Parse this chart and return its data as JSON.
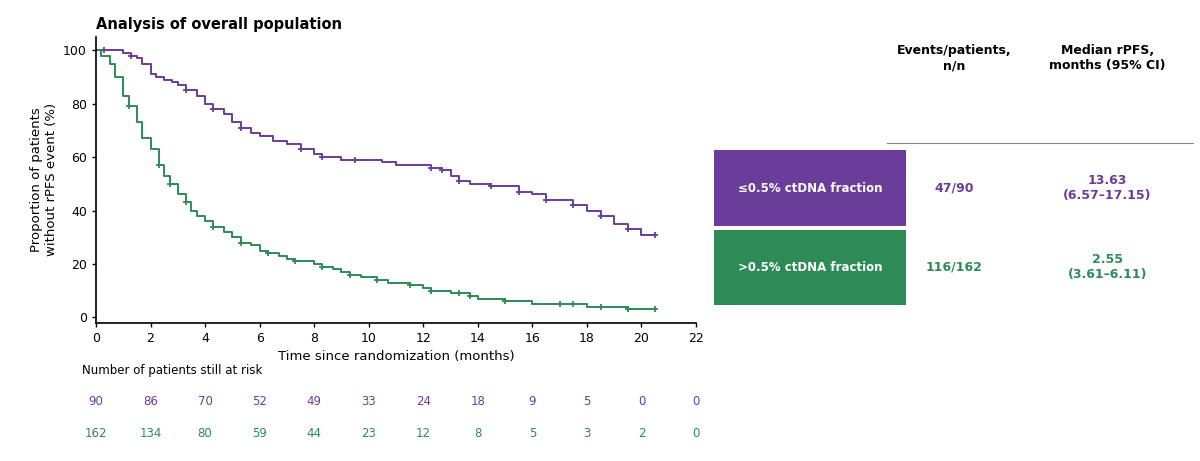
{
  "title": "Analysis of overall population",
  "xlabel": "Time since randomization (months)",
  "ylabel": "Proportion of patients\nwithout rPFS event (%)",
  "purple_color": "#6A3D9A",
  "green_color": "#2E8B57",
  "xlim": [
    0,
    22
  ],
  "ylim": [
    -2,
    105
  ],
  "xticks": [
    0,
    2,
    4,
    6,
    8,
    10,
    12,
    14,
    16,
    18,
    20,
    22
  ],
  "yticks": [
    0,
    20,
    40,
    60,
    80,
    100
  ],
  "legend_label_purple": "≤0.5% ctDNA fraction",
  "legend_label_green": ">0.5% ctDNA fraction",
  "events_patients_purple": "47/90",
  "events_patients_green": "116/162",
  "median_rpfs_purple": "13.63\n(6.57–17.15)",
  "median_rpfs_green": "2.55\n(3.61–6.11)",
  "col_header1": "Events/patients,\nn/n",
  "col_header2": "Median rPFS,\nmonths (95% CI)",
  "at_risk_label": "Number of patients still at risk",
  "at_risk_purple": [
    90,
    86,
    70,
    52,
    49,
    33,
    24,
    18,
    9,
    5,
    0,
    0
  ],
  "at_risk_green": [
    162,
    134,
    80,
    59,
    44,
    23,
    12,
    8,
    5,
    3,
    2,
    0
  ],
  "at_risk_times": [
    0,
    2,
    4,
    6,
    8,
    10,
    12,
    14,
    16,
    18,
    20,
    22
  ],
  "purple_km_times": [
    0,
    0.3,
    0.8,
    1.0,
    1.3,
    1.5,
    1.7,
    2.0,
    2.2,
    2.5,
    2.8,
    3.0,
    3.3,
    3.7,
    4.0,
    4.3,
    4.7,
    5.0,
    5.3,
    5.7,
    6.0,
    6.5,
    7.0,
    7.5,
    8.0,
    8.3,
    8.7,
    9.0,
    9.5,
    10.0,
    10.5,
    11.0,
    11.5,
    12.0,
    12.3,
    12.7,
    13.0,
    13.3,
    13.7,
    14.0,
    14.5,
    15.0,
    15.5,
    16.0,
    16.5,
    17.0,
    17.5,
    18.0,
    18.5,
    19.0,
    19.5,
    20.0,
    20.5
  ],
  "purple_km_surv": [
    100,
    100,
    100,
    99,
    98,
    97,
    95,
    91,
    90,
    89,
    88,
    87,
    85,
    83,
    80,
    78,
    76,
    73,
    71,
    69,
    68,
    66,
    65,
    63,
    61,
    60,
    60,
    59,
    59,
    59,
    58,
    57,
    57,
    57,
    56,
    55,
    53,
    51,
    50,
    50,
    49,
    49,
    47,
    46,
    44,
    44,
    42,
    40,
    38,
    35,
    33,
    31,
    31
  ],
  "green_km_times": [
    0,
    0.2,
    0.5,
    0.7,
    1.0,
    1.2,
    1.5,
    1.7,
    2.0,
    2.3,
    2.5,
    2.7,
    3.0,
    3.3,
    3.5,
    3.7,
    4.0,
    4.3,
    4.7,
    5.0,
    5.3,
    5.7,
    6.0,
    6.3,
    6.7,
    7.0,
    7.3,
    7.7,
    8.0,
    8.3,
    8.7,
    9.0,
    9.3,
    9.7,
    10.0,
    10.3,
    10.7,
    11.0,
    11.5,
    12.0,
    12.3,
    12.7,
    13.0,
    13.3,
    13.7,
    14.0,
    15.0,
    16.0,
    17.0,
    17.5,
    18.0,
    18.5,
    19.0,
    19.5,
    20.0,
    20.5
  ],
  "green_km_surv": [
    100,
    98,
    95,
    90,
    83,
    79,
    73,
    67,
    63,
    57,
    53,
    50,
    46,
    43,
    40,
    38,
    36,
    34,
    32,
    30,
    28,
    27,
    25,
    24,
    23,
    22,
    21,
    21,
    20,
    19,
    18,
    17,
    16,
    15,
    15,
    14,
    13,
    13,
    12,
    11,
    10,
    10,
    9,
    9,
    8,
    7,
    6,
    5,
    5,
    5,
    4,
    4,
    4,
    3,
    3,
    3
  ],
  "purple_censor_times": [
    0.3,
    1.3,
    3.3,
    4.3,
    5.3,
    7.5,
    8.3,
    9.5,
    12.3,
    12.7,
    13.3,
    14.5,
    15.5,
    16.5,
    17.5,
    18.5,
    19.5,
    20.5
  ],
  "purple_censor_surv": [
    100,
    98,
    85,
    78,
    71,
    63,
    60,
    59,
    56,
    55,
    51,
    49,
    47,
    44,
    42,
    38,
    33,
    31
  ],
  "green_censor_times": [
    1.2,
    2.3,
    2.7,
    3.3,
    4.3,
    5.3,
    6.3,
    7.3,
    8.3,
    9.3,
    10.3,
    11.5,
    12.3,
    13.3,
    13.7,
    15.0,
    17.0,
    17.5,
    18.5,
    19.5,
    20.5
  ],
  "green_censor_surv": [
    79,
    57,
    50,
    43,
    34,
    28,
    24,
    21,
    19,
    16,
    14,
    12,
    10,
    9,
    8,
    6,
    5,
    5,
    4,
    3,
    3
  ]
}
